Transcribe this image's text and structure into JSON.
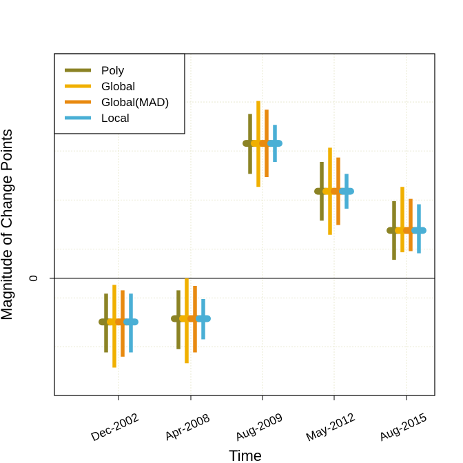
{
  "chart_data": {
    "type": "errorbar",
    "title": "",
    "xlabel": "Time",
    "ylabel": "Magnitude of Change Points",
    "categories": [
      "Dec-2002",
      "Apr-2008",
      "Aug-2009",
      "May-2012",
      "Aug-2015"
    ],
    "y_ticks": [
      {
        "value": 0,
        "label": "0"
      }
    ],
    "y_range_units": "unlabeled (relative magnitude, 0 marked)",
    "ylim": [
      -1.08,
      1.08
    ],
    "reference_line": 0,
    "grid": true,
    "legend_position": "top-left",
    "series": [
      {
        "name": "Poly",
        "color": "#8b8325",
        "center": [
          -0.4,
          -0.37,
          1.24,
          0.8,
          0.44
        ],
        "low": [
          -0.68,
          -0.65,
          0.96,
          0.53,
          0.17
        ],
        "high": [
          -0.14,
          -0.11,
          1.51,
          1.07,
          0.71
        ]
      },
      {
        "name": "Global",
        "color": "#f0b000",
        "center": [
          -0.4,
          -0.37,
          1.24,
          0.8,
          0.44
        ],
        "low": [
          -0.82,
          -0.78,
          0.84,
          0.4,
          0.24
        ],
        "high": [
          -0.06,
          0.0,
          1.63,
          1.2,
          0.84
        ]
      },
      {
        "name": "Global(MAD)",
        "color": "#e88a10",
        "center": [
          -0.4,
          -0.37,
          1.24,
          0.8,
          0.44
        ],
        "low": [
          -0.72,
          -0.68,
          0.93,
          0.49,
          0.25
        ],
        "high": [
          -0.11,
          -0.07,
          1.55,
          1.11,
          0.73
        ]
      },
      {
        "name": "Local",
        "color": "#4aafd5",
        "center": [
          -0.4,
          -0.37,
          1.24,
          0.8,
          0.44
        ],
        "low": [
          -0.68,
          -0.56,
          1.07,
          0.64,
          0.23
        ],
        "high": [
          -0.14,
          -0.19,
          1.41,
          0.96,
          0.68
        ]
      }
    ]
  }
}
